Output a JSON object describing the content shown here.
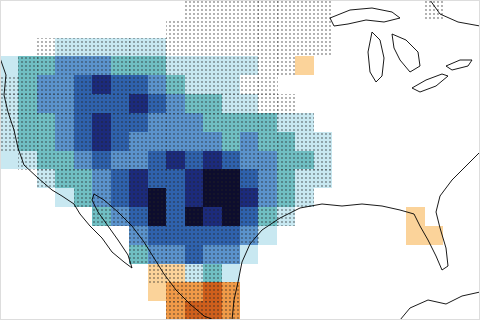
{
  "chart_data": {
    "type": "heatmap",
    "x": [
      -127,
      -125,
      -123,
      -121,
      -119,
      -117,
      -115,
      -113,
      -111,
      -109,
      -107,
      -105,
      -103,
      -101,
      -99,
      -97,
      -95,
      -93,
      -91,
      -89,
      -87,
      -85,
      -83,
      -81,
      -79,
      -77
    ],
    "y": [
      50,
      48,
      46,
      44,
      42,
      40,
      38,
      36,
      34,
      32,
      30,
      28,
      26,
      24,
      22,
      20,
      18
    ],
    "xlim": [
      -128,
      -76
    ],
    "ylim": [
      17,
      51
    ],
    "tick_labels": false,
    "color_range": [
      -6,
      3
    ],
    "cells": [
      [
        0,
        0,
        0,
        0,
        0,
        0,
        0,
        0,
        0,
        0,
        0,
        0,
        0,
        0,
        0,
        0,
        0,
        0,
        0,
        0,
        0,
        0,
        0,
        0,
        0,
        0
      ],
      [
        0,
        0,
        0,
        0,
        0,
        0,
        0,
        0,
        0,
        0,
        0,
        0,
        0,
        0,
        0,
        0,
        0,
        0,
        0,
        0,
        0,
        0,
        0,
        0,
        0,
        0
      ],
      [
        0,
        0,
        0,
        -1,
        -1,
        -1,
        -1,
        -1,
        -1,
        0,
        0,
        0,
        0,
        0,
        0,
        0,
        0,
        0,
        0,
        0,
        0,
        0,
        0,
        0,
        0,
        0
      ],
      [
        -1,
        -2,
        -2,
        -3,
        -3,
        -3,
        -2,
        -2,
        -2,
        -1,
        -1,
        -1,
        -1,
        -1,
        0,
        0,
        1,
        0,
        0,
        0,
        0,
        0,
        0,
        0,
        0,
        0
      ],
      [
        -1,
        -2,
        -3,
        -3,
        -4,
        -5,
        -4,
        -4,
        -3,
        -2,
        -1,
        -1,
        -1,
        0,
        0,
        0,
        0,
        0,
        0,
        0,
        0,
        0,
        0,
        0,
        0,
        0
      ],
      [
        -1,
        -2,
        -3,
        -3,
        -4,
        -4,
        -4,
        -5,
        -4,
        -3,
        -2,
        -2,
        -1,
        -1,
        0,
        0,
        0,
        0,
        0,
        0,
        0,
        0,
        0,
        0,
        0,
        0
      ],
      [
        -1,
        -2,
        -2,
        -3,
        -4,
        -5,
        -4,
        -4,
        -3,
        -3,
        -3,
        -2,
        -2,
        -2,
        -2,
        -1,
        -1,
        0,
        0,
        0,
        0,
        0,
        0,
        0,
        0,
        0
      ],
      [
        -1,
        -2,
        -2,
        -3,
        -4,
        -5,
        -4,
        -3,
        -3,
        -3,
        -3,
        -3,
        -2,
        -3,
        -2,
        -2,
        -1,
        -1,
        0,
        0,
        0,
        0,
        0,
        0,
        0,
        0
      ],
      [
        -1,
        -1,
        -2,
        -2,
        -3,
        -4,
        -3,
        -3,
        -4,
        -5,
        -4,
        -5,
        -4,
        -3,
        -3,
        -2,
        -2,
        -1,
        0,
        0,
        0,
        0,
        0,
        0,
        0,
        0
      ],
      [
        0,
        0,
        -1,
        -2,
        -2,
        -3,
        -4,
        -5,
        -4,
        -4,
        -5,
        -6,
        -6,
        -4,
        -3,
        -2,
        -1,
        -1,
        0,
        0,
        0,
        0,
        0,
        0,
        0,
        0
      ],
      [
        0,
        0,
        0,
        -1,
        -2,
        -3,
        -4,
        -5,
        -6,
        -4,
        -5,
        -6,
        -6,
        -5,
        -3,
        -2,
        -1,
        0,
        0,
        0,
        0,
        0,
        0,
        0,
        0,
        0
      ],
      [
        0,
        0,
        0,
        0,
        0,
        -2,
        -3,
        -4,
        -6,
        -4,
        -6,
        -5,
        -6,
        -4,
        -2,
        -1,
        0,
        0,
        0,
        0,
        0,
        0,
        1,
        0,
        0,
        0
      ],
      [
        0,
        0,
        0,
        0,
        0,
        0,
        0,
        -3,
        -4,
        -4,
        -4,
        -4,
        -4,
        -3,
        -1,
        0,
        0,
        0,
        0,
        0,
        0,
        0,
        1,
        1,
        0,
        0
      ],
      [
        0,
        0,
        0,
        0,
        0,
        0,
        0,
        -2,
        -3,
        -3,
        -4,
        -3,
        -3,
        -1,
        0,
        0,
        0,
        0,
        0,
        0,
        0,
        0,
        0,
        0,
        0,
        0
      ],
      [
        0,
        0,
        0,
        0,
        0,
        0,
        0,
        0,
        1,
        1,
        -1,
        -2,
        -1,
        0,
        0,
        0,
        0,
        0,
        0,
        0,
        0,
        0,
        0,
        0,
        0,
        0
      ],
      [
        0,
        0,
        0,
        0,
        0,
        0,
        0,
        0,
        1,
        2,
        2,
        3,
        2,
        0,
        0,
        0,
        0,
        0,
        0,
        0,
        0,
        0,
        0,
        0,
        0,
        0
      ],
      [
        0,
        0,
        0,
        0,
        0,
        0,
        0,
        0,
        0,
        2,
        3,
        3,
        2,
        0,
        0,
        0,
        0,
        0,
        0,
        0,
        0,
        0,
        0,
        0,
        0,
        0
      ]
    ],
    "significant": [
      [
        0,
        0,
        0,
        0,
        0,
        0,
        0,
        0,
        0,
        0,
        1,
        1,
        1,
        1,
        1,
        1,
        1,
        1,
        0,
        0,
        0,
        0,
        0,
        1,
        0,
        0
      ],
      [
        0,
        0,
        0,
        0,
        0,
        0,
        0,
        0,
        0,
        1,
        1,
        1,
        1,
        1,
        1,
        1,
        1,
        1,
        0,
        0,
        0,
        0,
        0,
        0,
        0,
        0
      ],
      [
        0,
        0,
        1,
        1,
        1,
        1,
        1,
        1,
        1,
        1,
        1,
        1,
        1,
        1,
        1,
        1,
        1,
        1,
        0,
        0,
        0,
        0,
        0,
        0,
        0,
        0
      ],
      [
        0,
        1,
        1,
        1,
        1,
        1,
        1,
        1,
        1,
        1,
        1,
        1,
        1,
        1,
        1,
        1,
        0,
        0,
        0,
        0,
        0,
        0,
        0,
        0,
        0,
        0
      ],
      [
        1,
        1,
        1,
        1,
        1,
        1,
        1,
        1,
        1,
        1,
        1,
        1,
        1,
        1,
        1,
        0,
        0,
        0,
        0,
        0,
        0,
        0,
        0,
        0,
        0,
        0
      ],
      [
        1,
        1,
        1,
        1,
        1,
        1,
        1,
        1,
        1,
        1,
        1,
        1,
        1,
        1,
        1,
        1,
        0,
        0,
        0,
        0,
        0,
        0,
        0,
        0,
        0,
        0
      ],
      [
        1,
        1,
        1,
        1,
        1,
        1,
        1,
        1,
        1,
        1,
        1,
        1,
        1,
        1,
        1,
        1,
        1,
        0,
        0,
        0,
        0,
        0,
        0,
        0,
        0,
        0
      ],
      [
        1,
        1,
        1,
        1,
        1,
        1,
        1,
        1,
        1,
        1,
        1,
        1,
        1,
        1,
        1,
        1,
        1,
        1,
        0,
        0,
        0,
        0,
        0,
        0,
        0,
        0
      ],
      [
        0,
        1,
        1,
        1,
        1,
        1,
        1,
        1,
        1,
        1,
        1,
        1,
        1,
        1,
        1,
        1,
        1,
        1,
        0,
        0,
        0,
        0,
        0,
        0,
        0,
        0
      ],
      [
        0,
        0,
        1,
        1,
        1,
        1,
        1,
        1,
        1,
        1,
        1,
        1,
        1,
        1,
        1,
        1,
        1,
        1,
        0,
        0,
        0,
        0,
        0,
        0,
        0,
        0
      ],
      [
        0,
        0,
        0,
        0,
        1,
        1,
        1,
        1,
        1,
        1,
        1,
        1,
        1,
        1,
        1,
        1,
        1,
        0,
        0,
        0,
        0,
        0,
        0,
        0,
        0,
        0
      ],
      [
        0,
        0,
        0,
        0,
        0,
        1,
        1,
        1,
        1,
        1,
        1,
        1,
        1,
        1,
        1,
        1,
        0,
        0,
        0,
        0,
        0,
        0,
        0,
        0,
        0,
        0
      ],
      [
        0,
        0,
        0,
        0,
        0,
        0,
        0,
        1,
        1,
        1,
        1,
        1,
        1,
        1,
        0,
        0,
        0,
        0,
        0,
        0,
        0,
        0,
        0,
        0,
        0,
        0
      ],
      [
        0,
        0,
        0,
        0,
        0,
        0,
        0,
        1,
        1,
        1,
        1,
        1,
        1,
        0,
        0,
        0,
        0,
        0,
        0,
        0,
        0,
        0,
        0,
        0,
        0,
        0
      ],
      [
        0,
        0,
        0,
        0,
        0,
        0,
        0,
        0,
        1,
        1,
        1,
        1,
        0,
        0,
        0,
        0,
        0,
        0,
        0,
        0,
        0,
        0,
        0,
        0,
        0,
        0
      ],
      [
        0,
        0,
        0,
        0,
        0,
        0,
        0,
        0,
        0,
        1,
        1,
        1,
        1,
        0,
        0,
        0,
        0,
        0,
        0,
        0,
        0,
        0,
        0,
        0,
        0,
        0
      ],
      [
        0,
        0,
        0,
        0,
        0,
        0,
        0,
        0,
        0,
        1,
        1,
        1,
        1,
        0,
        0,
        0,
        0,
        0,
        0,
        0,
        0,
        0,
        0,
        0,
        0,
        0
      ]
    ]
  }
}
